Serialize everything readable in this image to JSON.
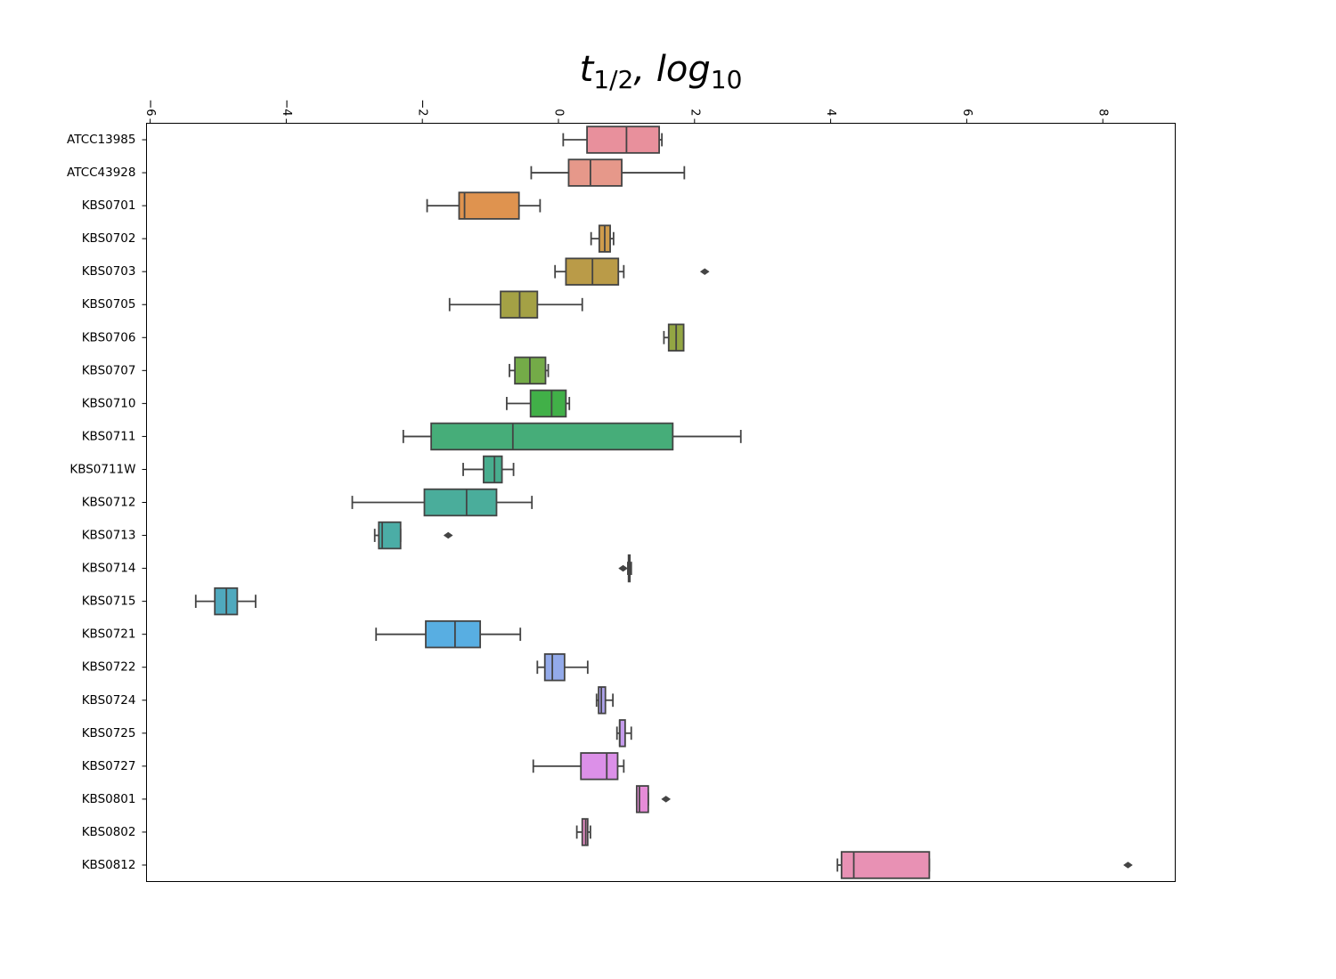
{
  "chart_data": {
    "type": "box",
    "title": {
      "base": "t",
      "sub": "1/2",
      "rest": ", log",
      "sub2": "10"
    },
    "orientation": "horizontal",
    "xlim": [
      -6.05,
      9.05
    ],
    "xaxis_position": "top",
    "tick_label_rotation": "rotated 90°",
    "x_ticks": [
      -6,
      -4,
      -2,
      0,
      2,
      4,
      6,
      8
    ],
    "x_tick_labels": [
      "−6",
      "−4",
      "−2",
      "0",
      "2",
      "4",
      "6",
      "8"
    ],
    "grid": false,
    "legend": "none",
    "series": [
      {
        "name": "ATCC13985",
        "color": "#e8909c",
        "whisker_low": 0.07,
        "q1": 0.42,
        "median": 1.0,
        "q3": 1.48,
        "whisker_high": 1.52,
        "outliers": []
      },
      {
        "name": "ATCC43928",
        "color": "#e6988a",
        "whisker_low": -0.4,
        "q1": 0.15,
        "median": 0.47,
        "q3": 0.93,
        "whisker_high": 1.85,
        "outliers": []
      },
      {
        "name": "KBS0701",
        "color": "#df934f",
        "whisker_low": -1.93,
        "q1": -1.46,
        "median": -1.38,
        "q3": -0.58,
        "whisker_high": -0.27,
        "outliers": []
      },
      {
        "name": "KBS0702",
        "color": "#cf9c4c",
        "whisker_low": 0.48,
        "q1": 0.6,
        "median": 0.68,
        "q3": 0.76,
        "whisker_high": 0.81,
        "outliers": []
      },
      {
        "name": "KBS0703",
        "color": "#ba9b48",
        "whisker_low": -0.05,
        "q1": 0.11,
        "median": 0.5,
        "q3": 0.88,
        "whisker_high": 0.96,
        "outliers": [
          2.15
        ]
      },
      {
        "name": "KBS0705",
        "color": "#a4a145",
        "whisker_low": -1.6,
        "q1": -0.85,
        "median": -0.57,
        "q3": -0.31,
        "whisker_high": 0.35,
        "outliers": []
      },
      {
        "name": "KBS0706",
        "color": "#93a643",
        "whisker_low": 1.55,
        "q1": 1.62,
        "median": 1.73,
        "q3": 1.84,
        "whisker_high": 1.84,
        "outliers": []
      },
      {
        "name": "KBS0707",
        "color": "#74ab48",
        "whisker_low": -0.72,
        "q1": -0.64,
        "median": -0.42,
        "q3": -0.19,
        "whisker_high": -0.15,
        "outliers": []
      },
      {
        "name": "KBS0710",
        "color": "#41b048",
        "whisker_low": -0.76,
        "q1": -0.41,
        "median": -0.1,
        "q3": 0.11,
        "whisker_high": 0.16,
        "outliers": []
      },
      {
        "name": "KBS0711",
        "color": "#46ad79",
        "whisker_low": -2.28,
        "q1": -1.87,
        "median": -0.67,
        "q3": 1.68,
        "whisker_high": 2.68,
        "outliers": []
      },
      {
        "name": "KBS0711W",
        "color": "#48ad8e",
        "whisker_low": -1.4,
        "q1": -1.1,
        "median": -0.94,
        "q3": -0.83,
        "whisker_high": -0.66,
        "outliers": []
      },
      {
        "name": "KBS0712",
        "color": "#4aad9b",
        "whisker_low": -3.03,
        "q1": -1.97,
        "median": -1.35,
        "q3": -0.91,
        "whisker_high": -0.39,
        "outliers": []
      },
      {
        "name": "KBS0713",
        "color": "#4bada6",
        "whisker_low": -2.7,
        "q1": -2.64,
        "median": -2.59,
        "q3": -2.32,
        "whisker_high": -2.32,
        "outliers": [
          -1.62
        ]
      },
      {
        "name": "KBS0714",
        "color": "#4dabb3",
        "whisker_low": 1.02,
        "q1": 1.03,
        "median": 1.04,
        "q3": 1.05,
        "whisker_high": 1.07,
        "outliers": [
          0.95
        ]
      },
      {
        "name": "KBS0715",
        "color": "#4fa9be",
        "whisker_low": -5.33,
        "q1": -5.05,
        "median": -4.88,
        "q3": -4.72,
        "whisker_high": -4.45,
        "outliers": []
      },
      {
        "name": "KBS0721",
        "color": "#58aee2",
        "whisker_low": -2.68,
        "q1": -1.95,
        "median": -1.52,
        "q3": -1.15,
        "whisker_high": -0.56,
        "outliers": []
      },
      {
        "name": "KBS0722",
        "color": "#93aaea",
        "whisker_low": -0.31,
        "q1": -0.2,
        "median": -0.09,
        "q3": 0.09,
        "whisker_high": 0.43,
        "outliers": []
      },
      {
        "name": "KBS0724",
        "color": "#aea3ec",
        "whisker_low": 0.56,
        "q1": 0.59,
        "median": 0.63,
        "q3": 0.69,
        "whisker_high": 0.8,
        "outliers": []
      },
      {
        "name": "KBS0725",
        "color": "#c59bec",
        "whisker_low": 0.86,
        "q1": 0.9,
        "median": 0.9,
        "q3": 0.98,
        "whisker_high": 1.07,
        "outliers": []
      },
      {
        "name": "KBS0727",
        "color": "#dc90e8",
        "whisker_low": -0.37,
        "q1": 0.33,
        "median": 0.71,
        "q3": 0.87,
        "whisker_high": 0.96,
        "outliers": []
      },
      {
        "name": "KBS0801",
        "color": "#e68cd7",
        "whisker_low": 1.15,
        "q1": 1.15,
        "median": 1.19,
        "q3": 1.32,
        "whisker_high": 1.32,
        "outliers": [
          1.58
        ]
      },
      {
        "name": "KBS0802",
        "color": "#e78ec6",
        "whisker_low": 0.27,
        "q1": 0.35,
        "median": 0.4,
        "q3": 0.43,
        "whisker_high": 0.47,
        "outliers": []
      },
      {
        "name": "KBS0812",
        "color": "#e891b4",
        "whisker_low": 4.1,
        "q1": 4.16,
        "median": 4.34,
        "q3": 5.45,
        "whisker_high": 5.45,
        "outliers": [
          8.37
        ]
      }
    ]
  }
}
